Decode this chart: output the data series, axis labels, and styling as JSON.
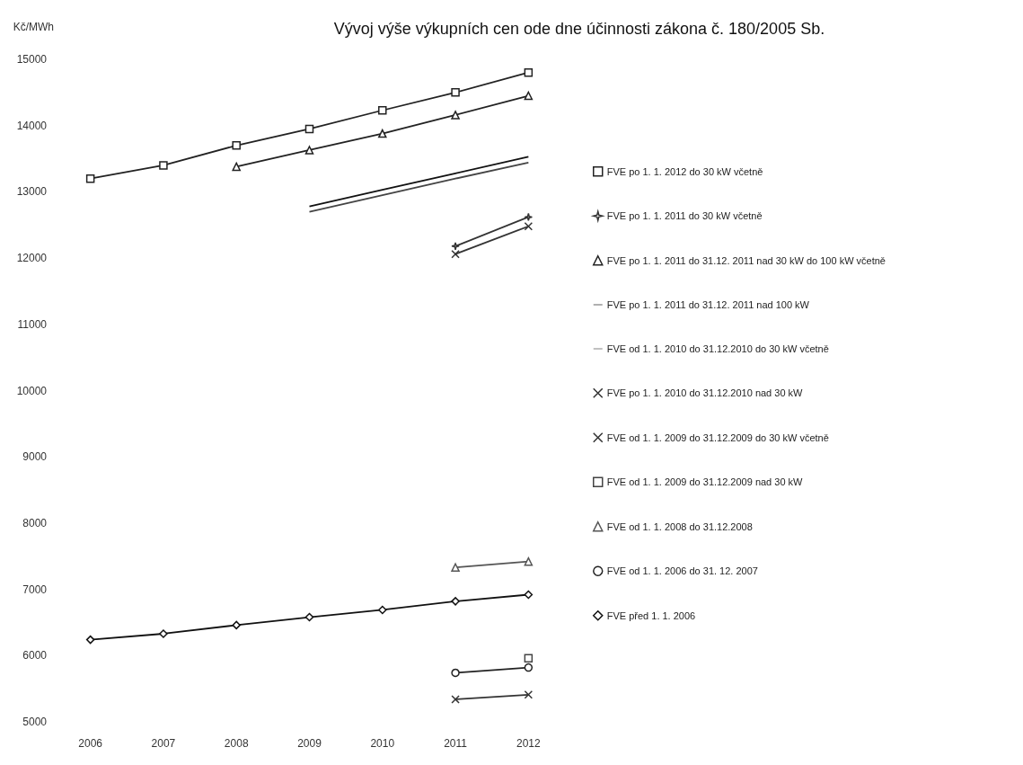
{
  "chart_data": {
    "type": "line",
    "title": "Vývoj výše výkupních cen ode dne účinnosti zákona č. 180/2005 Sb.",
    "ylabel": "Kč/MWh",
    "categories": [
      "2006",
      "2007",
      "2008",
      "2009",
      "2010",
      "2011",
      "2012"
    ],
    "ylim": [
      5000,
      15000
    ],
    "yticks": [
      5000,
      6000,
      7000,
      8000,
      9000,
      10000,
      11000,
      12000,
      13000,
      14000,
      15000
    ],
    "grid": false,
    "legend": "right",
    "series": [
      {
        "name": "FVE po 1. 1. 2012 do 30 kW včetně",
        "color": "#222222",
        "marker": "square",
        "values": [
          13200,
          13400,
          13700,
          13950,
          14230,
          14500,
          14800
        ]
      },
      {
        "name": "FVE po 1. 1. 2011 do 30 kW včetně",
        "color": "#333333",
        "marker": "star",
        "values": [
          null,
          null,
          null,
          null,
          null,
          12180,
          12620
        ]
      },
      {
        "name": "FVE po 1. 1. 2011 do 31.12. 2011 nad 30 kW do 100 kW včetně",
        "color": "#222222",
        "marker": "triangle",
        "values": [
          null,
          null,
          13380,
          13630,
          13880,
          14160,
          14450
        ]
      },
      {
        "name": "FVE po 1. 1. 2011 do 31.12. 2011 nad 100 kW",
        "color": "#111111",
        "marker": "none",
        "values": [
          null,
          null,
          null,
          12780,
          13030,
          13280,
          13530
        ]
      },
      {
        "name": "FVE od 1. 1. 2010 do 31.12.2010 do 30 kW včetně",
        "color": "#444444",
        "marker": "none",
        "values": [
          null,
          null,
          null,
          12700,
          12950,
          13200,
          13440
        ]
      },
      {
        "name": "FVE po 1. 1. 2010 do 31.12.2010 nad 30 kW",
        "color": "#333333",
        "marker": "cross",
        "values": [
          null,
          null,
          null,
          null,
          null,
          12060,
          12480
        ]
      },
      {
        "name": "FVE od 1. 1. 2009 do 31.12.2009 do 30 kW včetně",
        "color": "#333333",
        "marker": "cross",
        "values": [
          null,
          null,
          null,
          null,
          null,
          5340,
          5410
        ]
      },
      {
        "name": "FVE od 1. 1. 2009 do 31.12.2009 nad 30 kW",
        "color": "#444444",
        "marker": "square",
        "values": [
          null,
          null,
          null,
          null,
          null,
          null,
          5960
        ]
      },
      {
        "name": "FVE od 1. 1. 2008 do 31.12.2008",
        "color": "#555555",
        "marker": "triangle",
        "values": [
          null,
          null,
          null,
          null,
          null,
          7330,
          7420
        ]
      },
      {
        "name": "FVE od 1. 1. 2006 do 31. 12. 2007",
        "color": "#222222",
        "marker": "circle",
        "values": [
          null,
          null,
          null,
          null,
          null,
          5740,
          5820
        ]
      },
      {
        "name": "FVE před 1. 1. 2006",
        "color": "#111111",
        "marker": "diamond",
        "values": [
          6240,
          6330,
          6460,
          6580,
          6690,
          6820,
          6920
        ]
      }
    ]
  }
}
